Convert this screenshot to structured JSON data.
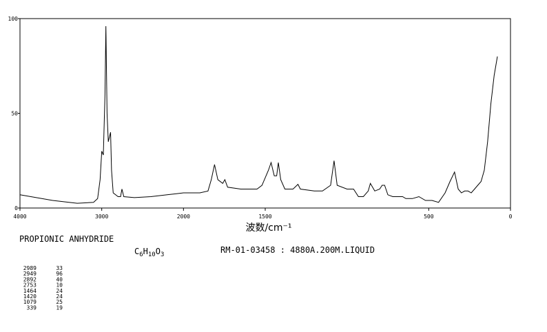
{
  "chart_data": {
    "type": "line",
    "xlabel": "波数/cm⁻¹",
    "xlim": [
      4000,
      0
    ],
    "xbreak": 2000,
    "xticks": [
      4000,
      3000,
      2000,
      1500,
      500,
      0
    ],
    "ylim": [
      0,
      100
    ],
    "yticks": [
      0,
      50,
      100
    ],
    "color": "#000000",
    "x": [
      4000,
      3800,
      3600,
      3400,
      3300,
      3100,
      3050,
      3020,
      3000,
      2980,
      2960,
      2949,
      2935,
      2920,
      2892,
      2880,
      2860,
      2800,
      2770,
      2753,
      2730,
      2600,
      2400,
      2200,
      2000,
      1900,
      1850,
      1830,
      1810,
      1790,
      1760,
      1747,
      1730,
      1650,
      1550,
      1520,
      1480,
      1464,
      1445,
      1430,
      1420,
      1405,
      1380,
      1330,
      1300,
      1285,
      1200,
      1150,
      1100,
      1079,
      1060,
      1000,
      960,
      930,
      900,
      870,
      857,
      830,
      800,
      785,
      770,
      750,
      720,
      700,
      660,
      640,
      600,
      560,
      520,
      480,
      440,
      400,
      370,
      342,
      320,
      300,
      280,
      260,
      240,
      220,
      200,
      180,
      160,
      140,
      120,
      100,
      80
    ],
    "values": [
      7,
      5.5,
      4,
      3,
      2.5,
      3,
      5,
      15,
      30,
      28,
      60,
      96,
      50,
      35,
      40,
      20,
      8,
      6,
      6,
      10,
      6,
      5.5,
      6,
      7,
      8,
      8,
      9,
      15,
      23,
      15,
      13,
      15,
      11,
      10,
      10,
      12,
      20,
      24,
      17,
      17,
      24,
      15,
      10,
      10,
      12.5,
      10,
      9,
      9,
      12,
      25,
      12,
      10,
      10,
      6,
      6,
      9,
      13,
      9,
      10,
      12,
      12,
      7,
      6,
      6,
      6,
      5,
      5,
      6,
      4,
      4,
      3,
      8,
      14,
      19,
      10,
      8,
      9,
      9,
      8,
      10,
      12,
      14,
      20,
      35,
      55,
      70,
      80
    ]
  },
  "compound": "PROPIONIC ANHYDRIDE",
  "formula": [
    "C",
    "6",
    "H",
    "10",
    "O",
    "3"
  ],
  "conditions": "RM-01-03458 : 4880A.200M.LIQUID",
  "peak_table": [
    [
      "2989",
      "33"
    ],
    [
      "2949",
      "96"
    ],
    [
      "2892",
      "40"
    ],
    [
      "2753",
      "10"
    ],
    [
      "1464",
      "24"
    ],
    [
      "1420",
      "24"
    ],
    [
      "1079",
      "25"
    ],
    [
      "339",
      "19"
    ]
  ]
}
